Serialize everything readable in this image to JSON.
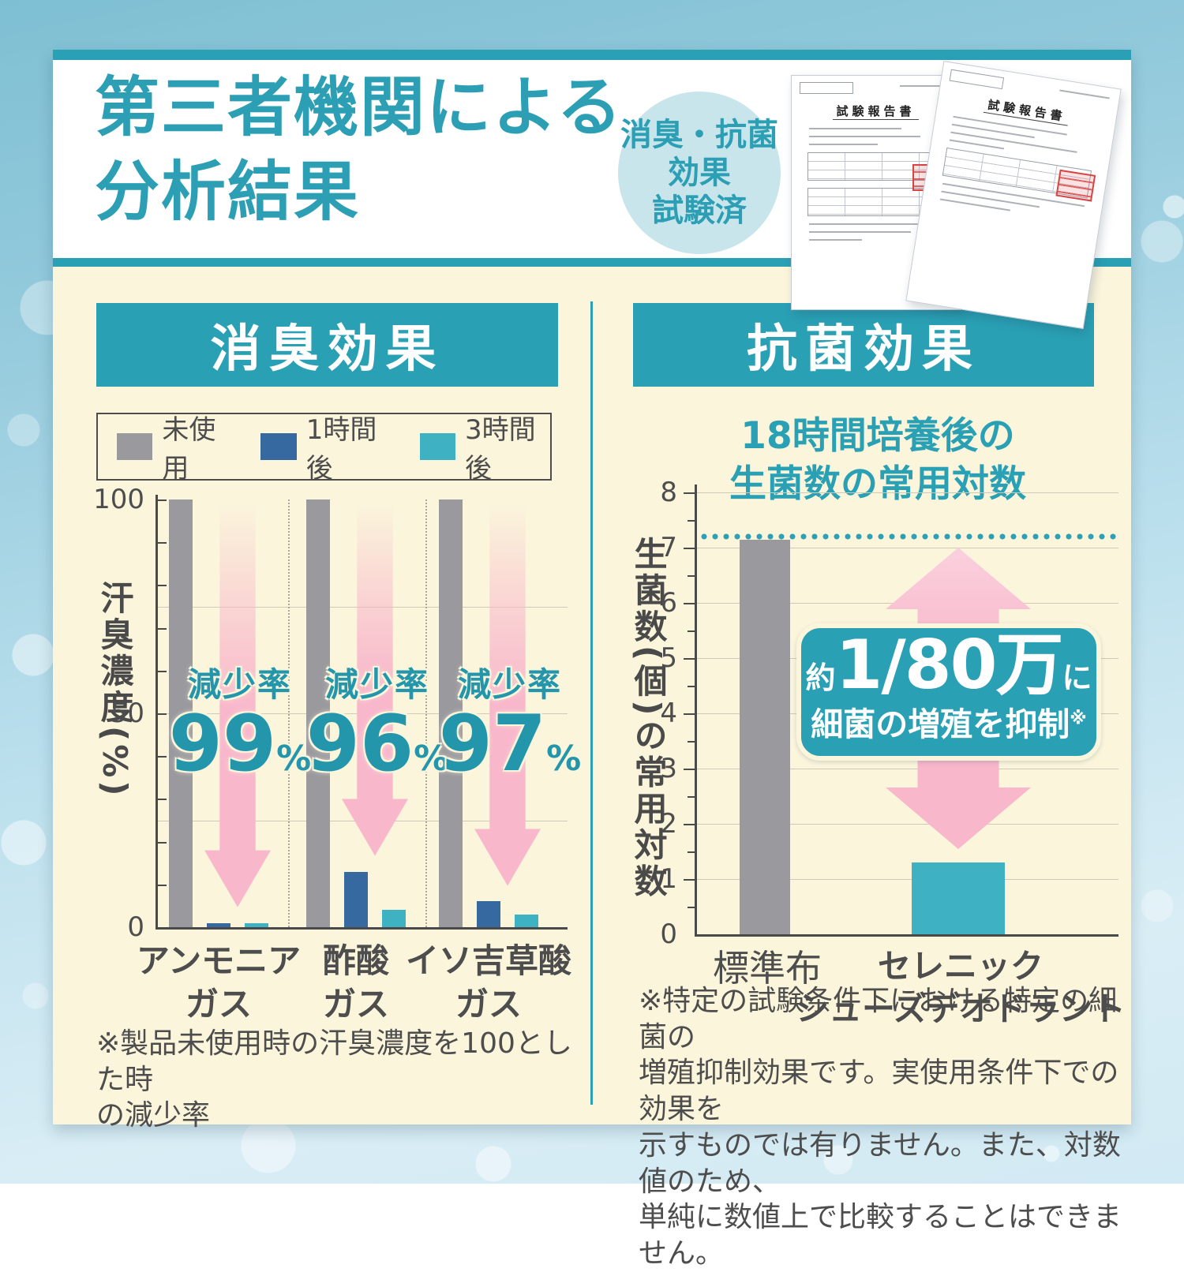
{
  "header": {
    "title_line1": "第三者機関による",
    "title_line2": "分析結果",
    "badge": {
      "line1": "消臭・抗菌",
      "line2": "効果",
      "line3": "試験済"
    },
    "documents": {
      "title": "試験報告書"
    }
  },
  "left_panel": {
    "header": "消臭効果",
    "footnote_lines": [
      "※製品未使用時の汗臭濃度を100とした時",
      "の減少率"
    ]
  },
  "right_panel": {
    "header": "抗菌効果",
    "footnote_lines": [
      "※特定の試験条件下における特定の細菌の",
      "増殖抑制効果です。実使用条件下での効果を",
      "示すものでは有りません。また、対数値のため、",
      "単純に数値上で比較することはできません。"
    ]
  },
  "chart_data": [
    {
      "type": "bar",
      "title": "消臭効果",
      "ylabel": "汗臭濃度(%)",
      "ylim": [
        0,
        100
      ],
      "yticks": [
        0,
        50,
        100
      ],
      "grid": true,
      "legend_position": "top",
      "categories": [
        "アンモニア\nガス",
        "酢酸\nガス",
        "イソ吉草酸\nガス"
      ],
      "series": [
        {
          "name": "未使用",
          "color": "#9A999E",
          "values": [
            100,
            100,
            100
          ]
        },
        {
          "name": "1時間後",
          "color": "#36699F",
          "values": [
            1,
            13,
            6
          ]
        },
        {
          "name": "3時間後",
          "color": "#3EB1C2",
          "values": [
            1,
            4,
            3
          ]
        }
      ],
      "annotations": [
        {
          "label": "減少率",
          "value": "99",
          "unit": "%"
        },
        {
          "label": "減少率",
          "value": "96",
          "unit": "%"
        },
        {
          "label": "減少率",
          "value": "97",
          "unit": "%"
        }
      ]
    },
    {
      "type": "bar",
      "title": "18時間培養後の生菌数の常用対数",
      "title_lines": [
        "18時間培養後の",
        "生菌数の常用対数"
      ],
      "ylabel": "生菌数(個)の常用対数",
      "ylim": [
        0,
        8
      ],
      "yticks": [
        0,
        1,
        2,
        3,
        4,
        5,
        6,
        7,
        8
      ],
      "grid": true,
      "categories": [
        "標準布",
        "セレニック\nシューズデオドラント"
      ],
      "values": [
        7.15,
        1.3
      ],
      "colors": [
        "#9A999E",
        "#3EB1C2"
      ],
      "reference_line": 7.2,
      "annotation": {
        "prefix": "約",
        "value": "1/80万",
        "suffix": "に",
        "line2": "細菌の増殖を抑制",
        "note_mark": "※"
      }
    }
  ]
}
